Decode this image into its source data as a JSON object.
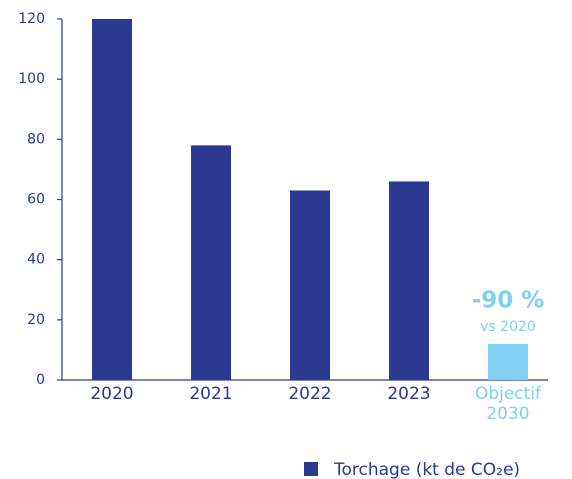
{
  "chart_data": {
    "type": "bar",
    "categories": [
      "2020",
      "2021",
      "2022",
      "2023",
      "Objectif 2030"
    ],
    "series": [
      {
        "name": "Torchage (kt de CO₂e)",
        "color": "#2b3990",
        "values": [
          120,
          78,
          63,
          66,
          12
        ],
        "colors": [
          "#2b3990",
          "#2b3990",
          "#2b3990",
          "#2b3990",
          "#80d0f3"
        ]
      }
    ],
    "ylim": [
      0,
      120
    ],
    "yticks": [
      0,
      20,
      40,
      60,
      80,
      100,
      120
    ],
    "annotations": [
      {
        "text": "-90 %"
      },
      {
        "text": "vs 2020"
      }
    ],
    "legend": "bottom-right"
  }
}
